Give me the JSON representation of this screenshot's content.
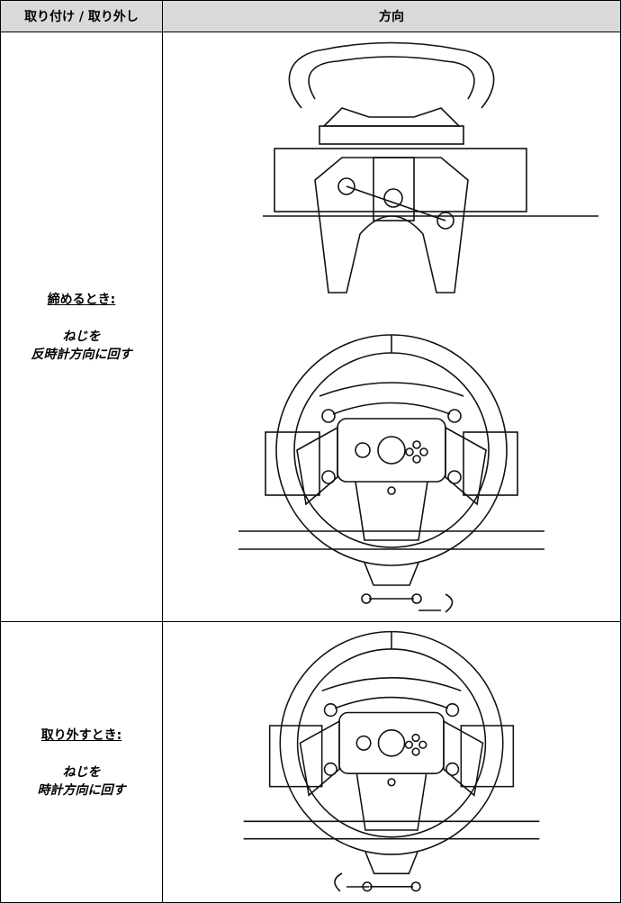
{
  "table": {
    "header": [
      "取り付け / 取り外し",
      "方向"
    ],
    "rows": [
      {
        "action": "締めるとき:",
        "instruction": [
          "ねじを",
          "反時計方向に回す"
        ]
      },
      {
        "action": "取り外すとき:",
        "instruction": [
          "ねじを",
          "時計方向に回す"
        ]
      }
    ]
  }
}
